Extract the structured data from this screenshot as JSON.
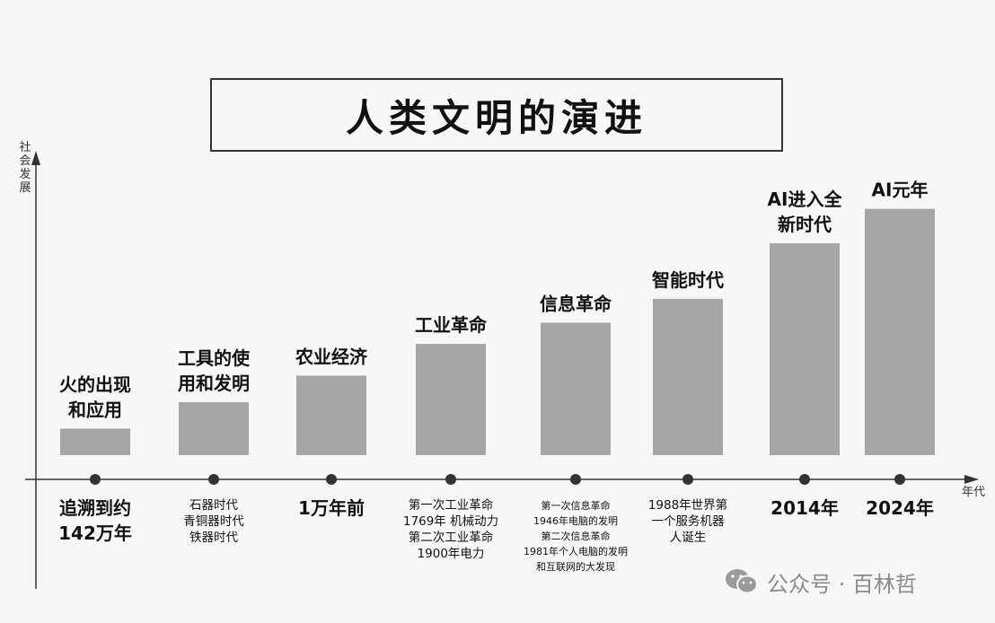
{
  "title": "人类文明的演进",
  "watermark": "公众号 · 百林哲",
  "chart_data": {
    "type": "bar",
    "y_axis_label": "社会发展",
    "x_axis_label": "年代",
    "grid": false,
    "bar_color": "#a6a6a6",
    "axis_color": "#333333",
    "categories": [
      {
        "top_label": [
          "火的出现",
          "和应用"
        ],
        "value": 1,
        "bottom_label": [
          "追溯到约",
          "142万年"
        ],
        "bottom_style": "large"
      },
      {
        "top_label": [
          "工具的使",
          "用和发明"
        ],
        "value": 2,
        "bottom_label": [
          "石器时代",
          "青铜器时代",
          "铁器时代"
        ],
        "bottom_style": "small"
      },
      {
        "top_label": [
          "农业经济"
        ],
        "value": 3,
        "bottom_label": [
          "1万年前"
        ],
        "bottom_style": "large"
      },
      {
        "top_label": [
          "工业革命"
        ],
        "value": 4.2,
        "bottom_label": [
          "第一次工业革命",
          "1769年 机械动力",
          "第二次工业革命",
          "1900年电力"
        ],
        "bottom_style": "small"
      },
      {
        "top_label": [
          "信息革命"
        ],
        "value": 5,
        "bottom_label": [
          "第一次信息革命",
          "1946年电脑的发明",
          "第二次信息革命",
          "1981年个人电脑的发明",
          "和互联网的大发现"
        ],
        "bottom_style": "tiny"
      },
      {
        "top_label": [
          "智能时代"
        ],
        "value": 5.9,
        "bottom_label": [
          "1988年世界第",
          "一个服务机器",
          "人诞生"
        ],
        "bottom_style": "small"
      },
      {
        "top_label": [
          "AI进入全",
          "新时代"
        ],
        "value": 8,
        "bottom_label": [
          "2014年"
        ],
        "bottom_style": "large"
      },
      {
        "top_label": [
          "AI元年"
        ],
        "value": 9.3,
        "bottom_label": [
          "2024年"
        ],
        "bottom_style": "large"
      }
    ]
  }
}
